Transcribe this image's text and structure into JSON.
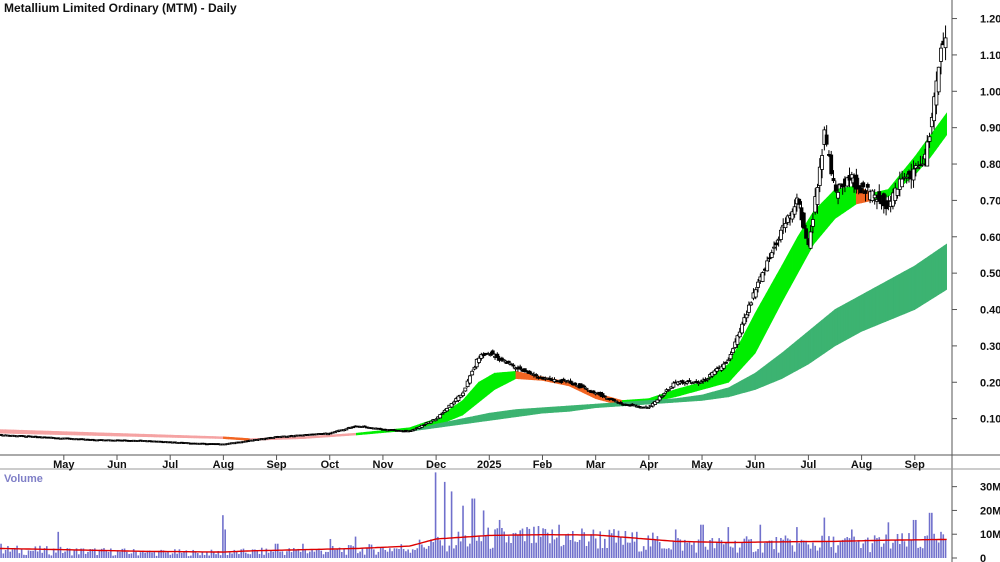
{
  "chart_data": [
    {
      "type": "candlestick",
      "title": "Metallium Limited Ordinary (MTM) - Daily",
      "y_ticks": [
        "0.10",
        "0.20",
        "0.30",
        "0.40",
        "0.50",
        "0.60",
        "0.70",
        "0.80",
        "0.90",
        "1.00",
        "1.10",
        "1.20"
      ],
      "y_tick_values": [
        0.1,
        0.2,
        0.3,
        0.4,
        0.5,
        0.6,
        0.7,
        0.8,
        0.9,
        1.0,
        1.1,
        1.2
      ],
      "ylim": [
        0.0,
        1.24
      ],
      "x_ticks": [
        "May",
        "Jun",
        "Jul",
        "Aug",
        "Sep",
        "Oct",
        "Nov",
        "Dec",
        "2025",
        "Feb",
        "Mar",
        "Apr",
        "May",
        "Jun",
        "Jul",
        "Aug",
        "Sep"
      ],
      "x_tick_positions": [
        2.5,
        3.5,
        4.5,
        5.5,
        6.5,
        7.5,
        8.5,
        9.5,
        10.5,
        11.5,
        12.5,
        13.5,
        14.5,
        15.5,
        16.5,
        17.5,
        18.5
      ],
      "xlim": [
        1.3,
        19.2
      ],
      "price_path": [
        [
          1.3,
          0.055
        ],
        [
          2.0,
          0.05
        ],
        [
          3.0,
          0.042
        ],
        [
          4.0,
          0.04
        ],
        [
          5.0,
          0.032
        ],
        [
          5.5,
          0.03
        ],
        [
          6.0,
          0.04
        ],
        [
          6.5,
          0.05
        ],
        [
          7.5,
          0.06
        ],
        [
          8.0,
          0.08
        ],
        [
          8.5,
          0.07
        ],
        [
          9.0,
          0.065
        ],
        [
          9.5,
          0.1
        ],
        [
          10.0,
          0.17
        ],
        [
          10.3,
          0.27
        ],
        [
          10.5,
          0.28
        ],
        [
          11.0,
          0.24
        ],
        [
          11.5,
          0.21
        ],
        [
          12.0,
          0.2
        ],
        [
          12.5,
          0.17
        ],
        [
          13.0,
          0.14
        ],
        [
          13.5,
          0.13
        ],
        [
          14.0,
          0.2
        ],
        [
          14.5,
          0.2
        ],
        [
          15.0,
          0.26
        ],
        [
          15.5,
          0.45
        ],
        [
          16.0,
          0.62
        ],
        [
          16.3,
          0.7
        ],
        [
          16.5,
          0.57
        ],
        [
          16.8,
          0.88
        ],
        [
          17.0,
          0.72
        ],
        [
          17.3,
          0.76
        ],
        [
          17.5,
          0.73
        ],
        [
          17.8,
          0.71
        ],
        [
          18.0,
          0.68
        ],
        [
          18.2,
          0.75
        ],
        [
          18.5,
          0.78
        ],
        [
          18.7,
          0.82
        ],
        [
          18.8,
          0.9
        ],
        [
          19.0,
          1.12
        ],
        [
          19.1,
          1.16
        ]
      ],
      "bands": [
        {
          "name": "short-term average ribbon",
          "colors": {
            "up": "#00ee00",
            "down": "#f26522",
            "flat": "#f5a3a3"
          },
          "upper": [
            [
              1.3,
              0.07
            ],
            [
              5.5,
              0.05
            ],
            [
              6.0,
              0.045
            ],
            [
              7.0,
              0.05
            ],
            [
              8.0,
              0.06
            ],
            [
              9.0,
              0.075
            ],
            [
              9.5,
              0.1
            ],
            [
              10.0,
              0.15
            ],
            [
              10.3,
              0.2
            ],
            [
              10.6,
              0.225
            ],
            [
              11.0,
              0.23
            ],
            [
              11.5,
              0.215
            ],
            [
              12.0,
              0.2
            ],
            [
              12.5,
              0.17
            ],
            [
              13.0,
              0.15
            ],
            [
              13.5,
              0.155
            ],
            [
              14.0,
              0.18
            ],
            [
              14.5,
              0.2
            ],
            [
              15.0,
              0.25
            ],
            [
              15.5,
              0.39
            ],
            [
              16.0,
              0.52
            ],
            [
              16.3,
              0.6
            ],
            [
              16.6,
              0.67
            ],
            [
              17.0,
              0.73
            ],
            [
              17.4,
              0.74
            ],
            [
              17.7,
              0.72
            ],
            [
              18.0,
              0.73
            ],
            [
              18.5,
              0.82
            ],
            [
              18.8,
              0.88
            ],
            [
              19.1,
              0.94
            ]
          ],
          "lower": [
            [
              1.3,
              0.06
            ],
            [
              5.5,
              0.045
            ],
            [
              6.0,
              0.04
            ],
            [
              7.0,
              0.045
            ],
            [
              8.0,
              0.055
            ],
            [
              9.0,
              0.068
            ],
            [
              9.5,
              0.08
            ],
            [
              10.0,
              0.11
            ],
            [
              10.3,
              0.145
            ],
            [
              10.6,
              0.18
            ],
            [
              11.0,
              0.21
            ],
            [
              11.5,
              0.205
            ],
            [
              12.0,
              0.19
            ],
            [
              12.5,
              0.155
            ],
            [
              13.0,
              0.135
            ],
            [
              13.5,
              0.145
            ],
            [
              14.0,
              0.16
            ],
            [
              14.5,
              0.18
            ],
            [
              15.0,
              0.2
            ],
            [
              15.5,
              0.28
            ],
            [
              16.0,
              0.42
            ],
            [
              16.3,
              0.5
            ],
            [
              16.6,
              0.58
            ],
            [
              17.0,
              0.65
            ],
            [
              17.4,
              0.69
            ],
            [
              17.7,
              0.7
            ],
            [
              18.0,
              0.71
            ],
            [
              18.5,
              0.77
            ],
            [
              18.8,
              0.82
            ],
            [
              19.1,
              0.88
            ]
          ]
        },
        {
          "name": "long-term average ribbon",
          "colors": {
            "up": "#3cb371"
          },
          "upper": [
            [
              9.0,
              0.065
            ],
            [
              9.5,
              0.085
            ],
            [
              10.0,
              0.1
            ],
            [
              10.5,
              0.115
            ],
            [
              11.0,
              0.125
            ],
            [
              11.5,
              0.13
            ],
            [
              12.0,
              0.135
            ],
            [
              12.5,
              0.14
            ],
            [
              13.0,
              0.145
            ],
            [
              13.5,
              0.15
            ],
            [
              14.0,
              0.155
            ],
            [
              14.5,
              0.165
            ],
            [
              15.0,
              0.185
            ],
            [
              15.5,
              0.225
            ],
            [
              16.0,
              0.28
            ],
            [
              16.5,
              0.34
            ],
            [
              17.0,
              0.4
            ],
            [
              17.5,
              0.44
            ],
            [
              18.0,
              0.48
            ],
            [
              18.5,
              0.52
            ],
            [
              19.1,
              0.58
            ]
          ],
          "lower": [
            [
              9.0,
              0.065
            ],
            [
              9.5,
              0.075
            ],
            [
              10.0,
              0.085
            ],
            [
              10.5,
              0.095
            ],
            [
              11.0,
              0.105
            ],
            [
              11.5,
              0.115
            ],
            [
              12.0,
              0.12
            ],
            [
              12.5,
              0.13
            ],
            [
              13.0,
              0.135
            ],
            [
              13.5,
              0.14
            ],
            [
              14.0,
              0.145
            ],
            [
              14.5,
              0.15
            ],
            [
              15.0,
              0.16
            ],
            [
              15.5,
              0.18
            ],
            [
              16.0,
              0.21
            ],
            [
              16.5,
              0.25
            ],
            [
              17.0,
              0.3
            ],
            [
              17.5,
              0.34
            ],
            [
              18.0,
              0.37
            ],
            [
              18.5,
              0.4
            ],
            [
              19.1,
              0.455
            ]
          ]
        }
      ]
    },
    {
      "type": "bar",
      "label": "Volume",
      "y_ticks": [
        "0",
        "10M",
        "20M",
        "30M"
      ],
      "y_tick_values": [
        0,
        10,
        20,
        30
      ],
      "ylim": [
        0,
        37
      ],
      "unit": "M",
      "moving_average": [
        [
          1.3,
          4
        ],
        [
          2.5,
          3.5
        ],
        [
          4.0,
          2.8
        ],
        [
          5.5,
          2.5
        ],
        [
          6.0,
          3
        ],
        [
          7.0,
          3.5
        ],
        [
          8.0,
          4
        ],
        [
          9.0,
          5
        ],
        [
          9.5,
          8
        ],
        [
          10.5,
          9.5
        ],
        [
          11.5,
          9.8
        ],
        [
          12.5,
          9.7
        ],
        [
          13.0,
          8.8
        ],
        [
          14.0,
          7
        ],
        [
          15.0,
          6.5
        ],
        [
          16.0,
          6.8
        ],
        [
          17.0,
          7
        ],
        [
          18.0,
          7.5
        ],
        [
          19.1,
          7.8
        ]
      ],
      "spikes": [
        [
          1.3,
          6
        ],
        [
          2.4,
          11
        ],
        [
          4.0,
          3
        ],
        [
          5.5,
          18
        ],
        [
          5.55,
          12
        ],
        [
          6.5,
          6
        ],
        [
          7.0,
          6
        ],
        [
          7.5,
          8
        ],
        [
          8.0,
          9
        ],
        [
          9.5,
          36
        ],
        [
          9.65,
          32
        ],
        [
          9.8,
          28
        ],
        [
          10.0,
          22
        ],
        [
          10.2,
          25
        ],
        [
          10.4,
          20
        ],
        [
          10.7,
          16
        ],
        [
          11.2,
          13
        ],
        [
          11.8,
          14
        ],
        [
          12.4,
          10
        ],
        [
          13.2,
          9
        ],
        [
          14.0,
          12
        ],
        [
          14.5,
          14
        ],
        [
          15.0,
          13
        ],
        [
          15.6,
          14
        ],
        [
          16.3,
          13
        ],
        [
          16.8,
          17
        ],
        [
          17.3,
          12
        ],
        [
          18.0,
          15
        ],
        [
          18.5,
          16
        ],
        [
          18.8,
          19
        ],
        [
          19.0,
          11
        ],
        [
          19.1,
          8
        ]
      ]
    }
  ]
}
